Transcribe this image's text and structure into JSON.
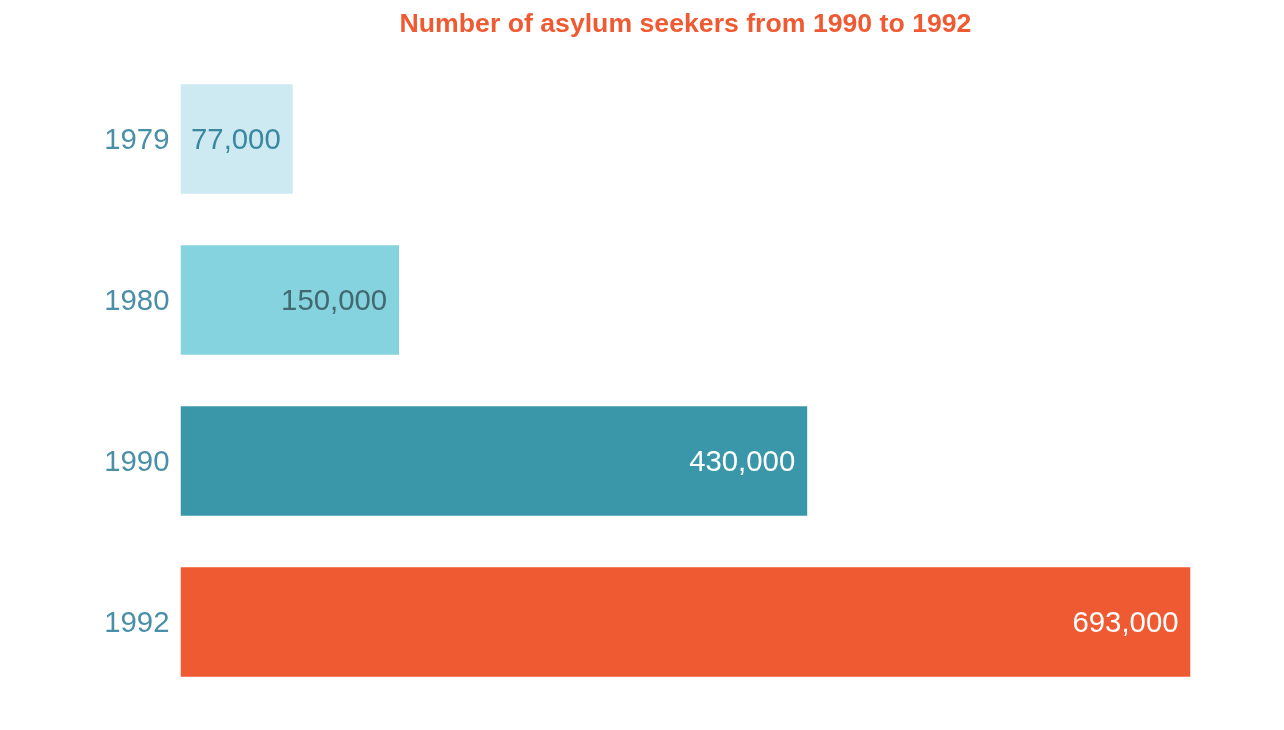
{
  "chart_data": {
    "type": "bar",
    "orientation": "horizontal",
    "title": "Number of asylum seekers from 1990 to 1992",
    "categories": [
      "1979",
      "1980",
      "1990",
      "1992"
    ],
    "values": [
      77000,
      150000,
      430000,
      693000
    ],
    "colors": [
      "#cdeaf2",
      "#85d3df",
      "#3a97a9",
      "#f05a33"
    ],
    "value_labels": [
      "77,000",
      "150,000",
      "430,000",
      "693,000"
    ],
    "grid": false
  }
}
